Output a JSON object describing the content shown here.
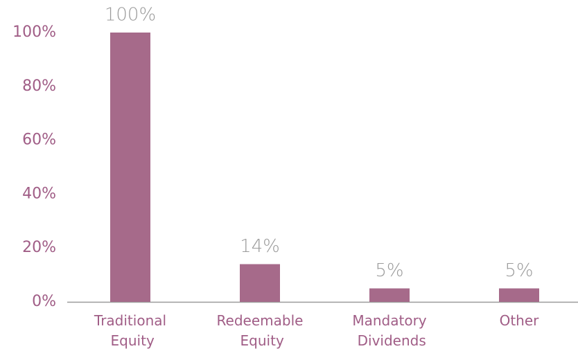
{
  "chart_data": {
    "type": "bar",
    "categories": [
      "Traditional Equity",
      "Redeemable Equity",
      "Mandatory Dividends",
      "Other"
    ],
    "values": [
      100,
      14,
      5,
      5
    ],
    "value_labels": [
      "100%",
      "14%",
      "5%",
      "5%"
    ],
    "color": "#a66a8a",
    "ylim": [
      0,
      100
    ],
    "yticks": [
      {
        "value": 0,
        "label": "0%"
      },
      {
        "value": 20,
        "label": "20%"
      },
      {
        "value": 40,
        "label": "40%"
      },
      {
        "value": 60,
        "label": "60%"
      },
      {
        "value": 80,
        "label": "80%"
      },
      {
        "value": 100,
        "label": "100%"
      }
    ],
    "grid": false
  }
}
